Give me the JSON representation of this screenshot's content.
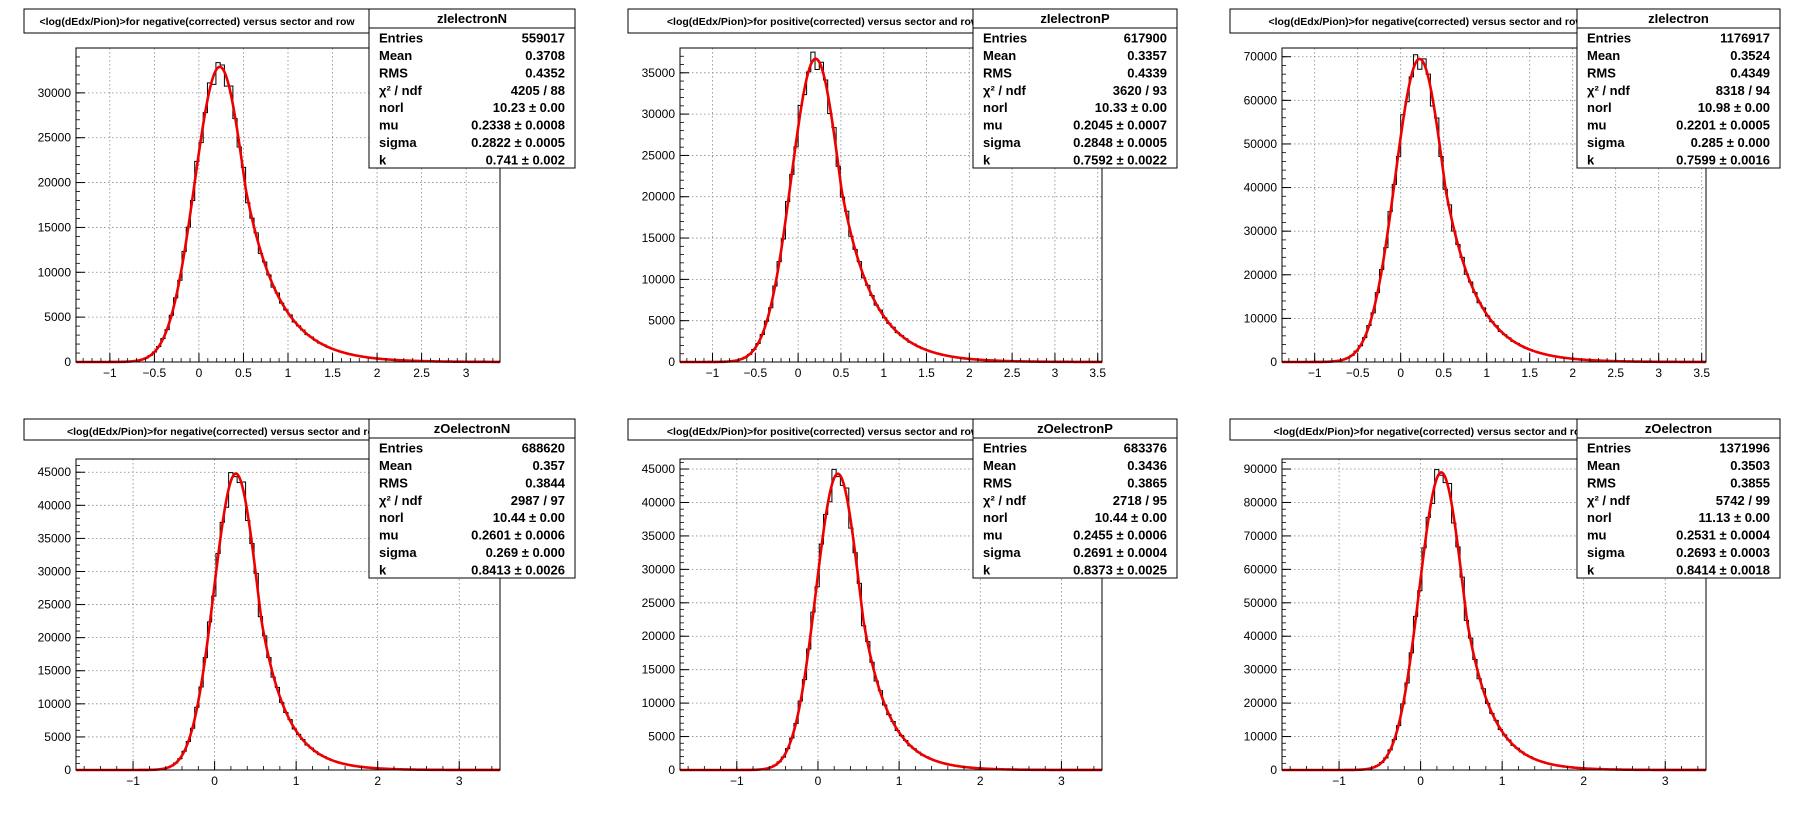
{
  "chart_data": [
    {
      "type": "histogram",
      "title": "<log(dEdx/Pion)>for negative(corrected) versus sector and row",
      "name": "zIelectronN",
      "xlim": [
        -1.38,
        3.38
      ],
      "xticks": [
        "-1",
        "-0.5",
        "0",
        "0.5",
        "1",
        "1.5",
        "2",
        "2.5",
        "3"
      ],
      "ylim": [
        0,
        35000
      ],
      "yticks": [
        "0",
        "5000",
        "10000",
        "15000",
        "20000",
        "25000",
        "30000"
      ],
      "fit": {
        "mu": 0.2338,
        "sigma": 0.2822,
        "k": 0.741,
        "peak": 32900
      },
      "stats": [
        {
          "label": "Entries",
          "value": "559017"
        },
        {
          "label": "Mean",
          "value": "0.3708"
        },
        {
          "label": "RMS",
          "value": "0.4352"
        },
        {
          "label": "χ² / ndf",
          "value": "4205 / 88"
        },
        {
          "label": "norl",
          "value": "10.23 ± 0.00"
        },
        {
          "label": "mu",
          "value": "0.2338 ± 0.0008"
        },
        {
          "label": "sigma",
          "value": "0.2822 ± 0.0005"
        },
        {
          "label": "k",
          "value": "0.741 ± 0.002"
        }
      ]
    },
    {
      "type": "histogram",
      "title": "<log(dEdx/Pion)>for positive(corrected) versus sector and row",
      "name": "zIelectronP",
      "xlim": [
        -1.38,
        3.55
      ],
      "xticks": [
        "-1",
        "-0.5",
        "0",
        "0.5",
        "1",
        "1.5",
        "2",
        "2.5",
        "3",
        "3.5"
      ],
      "ylim": [
        0,
        38000
      ],
      "yticks": [
        "0",
        "5000",
        "10000",
        "15000",
        "20000",
        "25000",
        "30000",
        "35000"
      ],
      "fit": {
        "mu": 0.2045,
        "sigma": 0.2848,
        "k": 0.7592,
        "peak": 36700
      },
      "stats": [
        {
          "label": "Entries",
          "value": "617900"
        },
        {
          "label": "Mean",
          "value": "0.3357"
        },
        {
          "label": "RMS",
          "value": "0.4339"
        },
        {
          "label": "χ² / ndf",
          "value": "3620 / 93"
        },
        {
          "label": "norl",
          "value": "10.33 ± 0.00"
        },
        {
          "label": "mu",
          "value": "0.2045 ± 0.0007"
        },
        {
          "label": "sigma",
          "value": "0.2848 ± 0.0005"
        },
        {
          "label": "k",
          "value": "0.7592 ± 0.0022"
        }
      ]
    },
    {
      "type": "histogram",
      "title": "<log(dEdx/Pion)>for negative(corrected) versus sector and row",
      "name": "zIelectron",
      "xlim": [
        -1.38,
        3.55
      ],
      "xticks": [
        "-1",
        "-0.5",
        "0",
        "0.5",
        "1",
        "1.5",
        "2",
        "2.5",
        "3",
        "3.5"
      ],
      "ylim": [
        0,
        72000
      ],
      "yticks": [
        "0",
        "10000",
        "20000",
        "30000",
        "40000",
        "50000",
        "60000",
        "70000"
      ],
      "fit": {
        "mu": 0.2201,
        "sigma": 0.285,
        "k": 0.7599,
        "peak": 69500
      },
      "stats": [
        {
          "label": "Entries",
          "value": "1176917"
        },
        {
          "label": "Mean",
          "value": "0.3524"
        },
        {
          "label": "RMS",
          "value": "0.4349"
        },
        {
          "label": "χ² / ndf",
          "value": "8318 / 94"
        },
        {
          "label": "norl",
          "value": "10.98 ± 0.00"
        },
        {
          "label": "mu",
          "value": "0.2201 ± 0.0005"
        },
        {
          "label": "sigma",
          "value": "0.285 ± 0.000"
        },
        {
          "label": "k",
          "value": "0.7599 ± 0.0016"
        }
      ]
    },
    {
      "type": "histogram",
      "title": "<log(dEdx/Pion)>for negative(corrected) versus sector and row",
      "name": "zOelectronN",
      "xlim": [
        -1.7,
        3.5
      ],
      "xticks": [
        "-1",
        "0",
        "1",
        "2",
        "3"
      ],
      "ylim": [
        0,
        47000
      ],
      "yticks": [
        "0",
        "5000",
        "10000",
        "15000",
        "20000",
        "25000",
        "30000",
        "35000",
        "40000",
        "45000"
      ],
      "fit": {
        "mu": 0.2601,
        "sigma": 0.269,
        "k": 0.8413,
        "peak": 44800
      },
      "stats": [
        {
          "label": "Entries",
          "value": "688620"
        },
        {
          "label": "Mean",
          "value": "0.357"
        },
        {
          "label": "RMS",
          "value": "0.3844"
        },
        {
          "label": "χ² / ndf",
          "value": "2987 / 97"
        },
        {
          "label": "norl",
          "value": "10.44 ± 0.00"
        },
        {
          "label": "mu",
          "value": "0.2601 ± 0.0006"
        },
        {
          "label": "sigma",
          "value": "0.269 ± 0.000"
        },
        {
          "label": "k",
          "value": "0.8413 ± 0.0026"
        }
      ]
    },
    {
      "type": "histogram",
      "title": "<log(dEdx/Pion)>for positive(corrected) versus sector and row",
      "name": "zOelectronP",
      "xlim": [
        -1.7,
        3.5
      ],
      "xticks": [
        "-1",
        "0",
        "1",
        "2",
        "3"
      ],
      "ylim": [
        0,
        46500
      ],
      "yticks": [
        "0",
        "5000",
        "10000",
        "15000",
        "20000",
        "25000",
        "30000",
        "35000",
        "40000",
        "45000"
      ],
      "fit": {
        "mu": 0.2455,
        "sigma": 0.2691,
        "k": 0.8373,
        "peak": 44300
      },
      "stats": [
        {
          "label": "Entries",
          "value": "683376"
        },
        {
          "label": "Mean",
          "value": "0.3436"
        },
        {
          "label": "RMS",
          "value": "0.3865"
        },
        {
          "label": "χ² / ndf",
          "value": "2718 / 95"
        },
        {
          "label": "norl",
          "value": "10.44 ± 0.00"
        },
        {
          "label": "mu",
          "value": "0.2455 ± 0.0006"
        },
        {
          "label": "sigma",
          "value": "0.2691 ± 0.0004"
        },
        {
          "label": "k",
          "value": "0.8373 ± 0.0025"
        }
      ]
    },
    {
      "type": "histogram",
      "title": "<log(dEdx/Pion)>for negative(corrected) versus sector and row",
      "name": "zOelectron",
      "xlim": [
        -1.7,
        3.5
      ],
      "xticks": [
        "-1",
        "0",
        "1",
        "2",
        "3"
      ],
      "ylim": [
        0,
        93000
      ],
      "yticks": [
        "0",
        "10000",
        "20000",
        "30000",
        "40000",
        "50000",
        "60000",
        "70000",
        "80000",
        "90000"
      ],
      "fit": {
        "mu": 0.2531,
        "sigma": 0.2693,
        "k": 0.8414,
        "peak": 89000
      },
      "stats": [
        {
          "label": "Entries",
          "value": "1371996"
        },
        {
          "label": "Mean",
          "value": "0.3503"
        },
        {
          "label": "RMS",
          "value": "0.3855"
        },
        {
          "label": "χ² / ndf",
          "value": "5742 / 99"
        },
        {
          "label": "norl",
          "value": "11.13 ± 0.00"
        },
        {
          "label": "mu",
          "value": "0.2531 ± 0.0004"
        },
        {
          "label": "sigma",
          "value": "0.2693 ± 0.0003"
        },
        {
          "label": "k",
          "value": "0.8414 ± 0.0018"
        }
      ]
    }
  ],
  "colors": {
    "fit_curve": "#ee0000",
    "histogram": "#000000",
    "grid": "#888888",
    "background": "#ffffff"
  }
}
